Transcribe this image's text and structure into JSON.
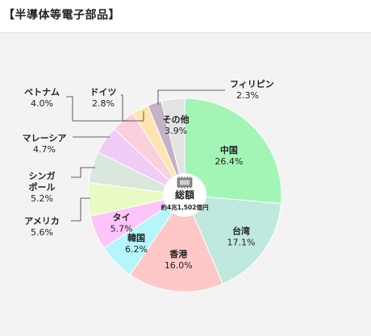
{
  "header": {
    "title": "【半導体等電子部品】"
  },
  "chart_data": {
    "type": "pie",
    "center_label": "総額",
    "center_sublabel": "約4兆1,502億円",
    "slices": [
      {
        "name": "中国",
        "value": 26.4,
        "label": "26.4%",
        "color": "#a3f5b6"
      },
      {
        "name": "台湾",
        "value": 17.1,
        "label": "17.1%",
        "color": "#bfe8df"
      },
      {
        "name": "香港",
        "value": 16.0,
        "label": "16.0%",
        "color": "#ffc8c8"
      },
      {
        "name": "韓国",
        "value": 6.2,
        "label": "6.2%",
        "color": "#b6f6fb"
      },
      {
        "name": "タイ",
        "value": 5.7,
        "label": "5.7%",
        "color": "#fdc5fb"
      },
      {
        "name": "アメリカ",
        "value": 5.6,
        "label": "5.6%",
        "color": "#e8fbc5"
      },
      {
        "name": "シンガポール",
        "name_lines": [
          "シンガ",
          "ポール"
        ],
        "value": 5.2,
        "label": "5.2%",
        "color": "#d9e7dd"
      },
      {
        "name": "マレーシア",
        "value": 4.7,
        "label": "4.7%",
        "color": "#f0cdf7"
      },
      {
        "name": "ベトナム",
        "value": 4.0,
        "label": "4.0%",
        "color": "#fbd0dd"
      },
      {
        "name": "ドイツ",
        "value": 2.8,
        "label": "2.8%",
        "color": "#fee4b1"
      },
      {
        "name": "フィリピン",
        "value": 2.3,
        "label": "2.3%",
        "color": "#c4b2c8"
      },
      {
        "name": "その他",
        "value": 3.9,
        "label": "3.9%",
        "color": "#e3e3e3"
      }
    ]
  }
}
